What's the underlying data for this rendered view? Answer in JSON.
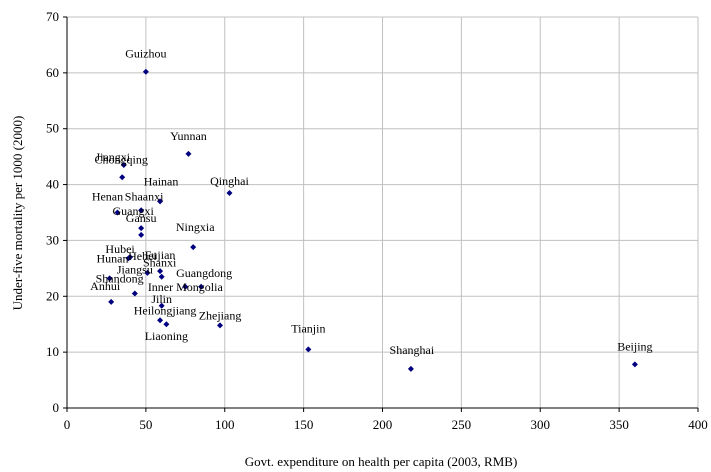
{
  "chart_data": {
    "type": "scatter",
    "title": "",
    "xlabel": "Govt. expenditure on health per capita (2003, RMB)",
    "ylabel": "Under-five mortality per 1000 (2000)",
    "xlim": [
      0,
      400
    ],
    "ylim": [
      0,
      70
    ],
    "xticks": [
      0,
      50,
      100,
      150,
      200,
      250,
      300,
      350,
      400
    ],
    "yticks": [
      0,
      10,
      20,
      30,
      40,
      50,
      60,
      70
    ],
    "grid": true,
    "marker_color": "#000080",
    "points": [
      {
        "label": "Guizhou",
        "x": 50,
        "y": 60.2
      },
      {
        "label": "Yunnan",
        "x": 77,
        "y": 45.5
      },
      {
        "label": "Jiangxi",
        "x": 36,
        "y": 43.5
      },
      {
        "label": "Chongqing",
        "x": 35,
        "y": 41.3
      },
      {
        "label": "Qinghai",
        "x": 103,
        "y": 38.5
      },
      {
        "label": "Hainan",
        "x": 59,
        "y": 37.0
      },
      {
        "label": "Henan",
        "x": 32,
        "y": 35.0
      },
      {
        "label": "Shaanxi",
        "x": 47,
        "y": 35.4
      },
      {
        "label": "Guangxi",
        "x": 47,
        "y": 32.2
      },
      {
        "label": "Gansu",
        "x": 47,
        "y": 31.0
      },
      {
        "label": "Ningxia",
        "x": 80,
        "y": 28.8
      },
      {
        "label": "Hubei",
        "x": 40,
        "y": 27.0
      },
      {
        "label": "Hunan",
        "x": 39,
        "y": 26.8
      },
      {
        "label": "Hebei",
        "x": 51,
        "y": 24.2
      },
      {
        "label": "Fujian",
        "x": 59,
        "y": 24.5
      },
      {
        "label": "Shanxi",
        "x": 60,
        "y": 23.5
      },
      {
        "label": "Inner Mongolia",
        "x": 75,
        "y": 21.7
      },
      {
        "label": "Guangdong",
        "x": 85,
        "y": 21.7
      },
      {
        "label": "Shandong",
        "x": 27,
        "y": 23.2
      },
      {
        "label": "Anhui",
        "x": 28,
        "y": 19.0
      },
      {
        "label": "Jiangsu",
        "x": 43,
        "y": 20.5
      },
      {
        "label": "Jilin",
        "x": 60,
        "y": 18.3
      },
      {
        "label": "Heilongjiang",
        "x": 59,
        "y": 15.7
      },
      {
        "label": "Liaoning",
        "x": 63,
        "y": 15.0
      },
      {
        "label": "Zhejiang",
        "x": 97,
        "y": 14.8
      },
      {
        "label": "Tianjin",
        "x": 153,
        "y": 10.5
      },
      {
        "label": "Shanghai",
        "x": 218,
        "y": 7.0
      },
      {
        "label": "Beijing",
        "x": 360,
        "y": 7.8
      }
    ]
  }
}
